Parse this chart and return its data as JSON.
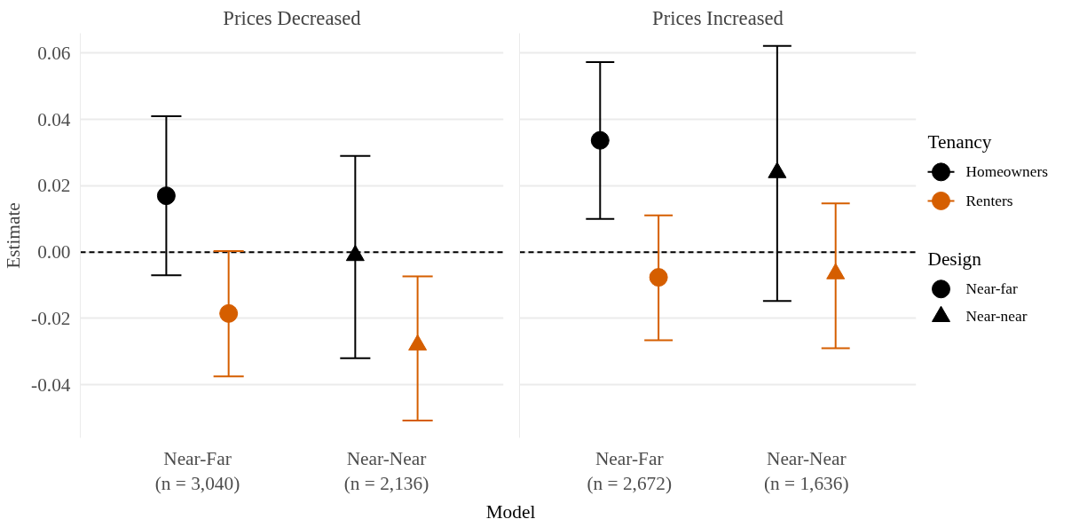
{
  "chart_data": [
    {
      "type": "scatter",
      "title": "Prices Decreased",
      "ylabel": "Estimate",
      "xlabel": "Model",
      "categories": [
        "Near-Far\n(n = 3,040)",
        "Near-Near\n(n = 2,136)"
      ],
      "marker": [
        "circle",
        "triangle"
      ],
      "series": [
        {
          "color": "#000000",
          "values": [
            0.017,
            -0.001
          ],
          "errors": [
            [
              -0.007,
              0.041
            ],
            [
              -0.032,
              0.029
            ]
          ]
        },
        {
          "color": "#d55e00",
          "values": [
            -0.0185,
            -0.028
          ],
          "errors": [
            [
              -0.0375,
              0.0003
            ],
            [
              -0.0508,
              -0.0073
            ]
          ]
        }
      ],
      "ylim": [
        -0.056,
        0.066
      ],
      "yticks": [
        {
          "value": -0.04,
          "label": "-0.04"
        },
        {
          "value": -0.02,
          "label": "-0.02"
        },
        {
          "value": 0,
          "label": "0.00"
        },
        {
          "value": 0.02,
          "label": "0.02"
        },
        {
          "value": 0.04,
          "label": "0.04"
        },
        {
          "value": 0.06,
          "label": "0.06"
        }
      ],
      "ref_lines": [
        {
          "axis": "y",
          "value": 0,
          "label": null,
          "color": "#000000",
          "line_style": "dashed"
        }
      ],
      "grid": "y"
    },
    {
      "type": "scatter",
      "title": "Prices Increased",
      "categories": [
        "Near-Far\n(n = 2,672)",
        "Near-Near\n(n = 1,636)"
      ],
      "marker": [
        "circle",
        "triangle"
      ],
      "series": [
        {
          "name": "Homeowners",
          "color": "#000000",
          "values": [
            0.0337,
            0.024
          ],
          "errors": [
            [
              0.01,
              0.0573
            ],
            [
              -0.0147,
              0.0622
            ]
          ]
        },
        {
          "name": "Renters",
          "color": "#d55e00",
          "values": [
            -0.0076,
            -0.0065
          ],
          "errors": [
            [
              -0.0266,
              0.0111
            ],
            [
              -0.029,
              0.0147
            ]
          ]
        },
        {
          "name": "Near-far",
          "color": "#000000",
          "marker": "circle",
          "values": [
            null,
            null
          ]
        },
        {
          "name": "Near-near",
          "color": "#000000",
          "marker": "triangle",
          "values": [
            null,
            null
          ]
        }
      ],
      "ylim": [
        -0.056,
        0.066
      ],
      "yticks": [
        {
          "value": -0.04,
          "label": null
        },
        {
          "value": -0.02,
          "label": null
        },
        {
          "value": 0,
          "label": null
        },
        {
          "value": 0.02,
          "label": null
        },
        {
          "value": 0.04,
          "label": null
        },
        {
          "value": 0.06,
          "label": null
        }
      ],
      "ref_lines": [
        {
          "axis": "y",
          "value": 0,
          "label": null,
          "color": "#000000",
          "line_style": "dashed"
        }
      ],
      "grid": "y",
      "tick_labels": "x",
      "legend": "right",
      "legend_title": "Tenancy",
      "annotations": [
        "Design"
      ]
    }
  ]
}
